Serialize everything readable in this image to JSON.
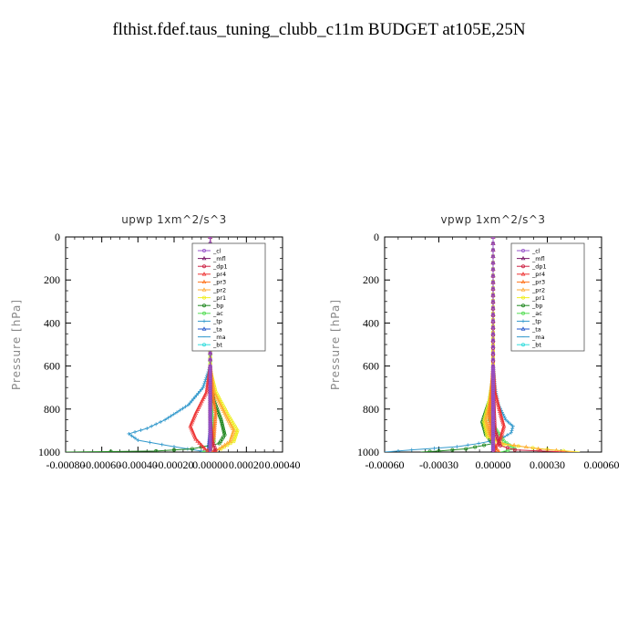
{
  "title": "flthist.fdef.taus_tuning_clubb_c11m  BUDGET at105E,25N",
  "chart_data": [
    {
      "type": "line",
      "title": "upwp   1xm^2/s^3",
      "ylabel": "Pressure [hPa]",
      "xlim": [
        -0.0008,
        0.0004
      ],
      "ylim": [
        1000,
        0
      ],
      "xticks": [
        "-0.00080",
        "-0.00060",
        "-0.00040",
        "-0.00020",
        "0.00000",
        "0.00020",
        "0.00040"
      ],
      "yticks": [
        "0",
        "200",
        "400",
        "600",
        "800",
        "1000"
      ],
      "legend_loc": "upper-right",
      "series": [
        {
          "name": "_cl",
          "color": "#9955cc",
          "marker": "circle",
          "points": [
            [
              0,
              0
            ],
            [
              0,
              600
            ],
            [
              0,
              900
            ],
            [
              0,
              980
            ],
            [
              0,
              1000
            ]
          ]
        },
        {
          "name": "_mfl",
          "color": "#7a1a6a",
          "marker": "tri",
          "points": [
            [
              0,
              0
            ],
            [
              0,
              600
            ],
            [
              0,
              900
            ],
            [
              0,
              1000
            ]
          ]
        },
        {
          "name": "_dp1",
          "color": "#cc2244",
          "marker": "circle",
          "points": [
            [
              0,
              0
            ],
            [
              0,
              600
            ],
            [
              0,
              850
            ],
            [
              1e-05,
              950
            ],
            [
              3e-05,
              990
            ],
            [
              2e-05,
              1000
            ]
          ]
        },
        {
          "name": "_pr4",
          "color": "#ee3333",
          "marker": "tri",
          "points": [
            [
              0,
              0
            ],
            [
              0,
              600
            ],
            [
              -2e-05,
              720
            ],
            [
              -8e-05,
              820
            ],
            [
              -0.00011,
              880
            ],
            [
              -8e-05,
              940
            ],
            [
              -3e-05,
              985
            ],
            [
              0,
              1000
            ]
          ]
        },
        {
          "name": "_pr3",
          "color": "#ff7722",
          "marker": "tri",
          "points": [
            [
              0,
              0
            ],
            [
              0,
              600
            ],
            [
              1e-05,
              720
            ],
            [
              3e-05,
              820
            ],
            [
              2e-05,
              930
            ],
            [
              0.0,
              990
            ],
            [
              4e-05,
              1000
            ]
          ]
        },
        {
          "name": "_pr2",
          "color": "#ffaa33",
          "marker": "tri",
          "points": [
            [
              0,
              0
            ],
            [
              0,
              600
            ],
            [
              2e-05,
              720
            ],
            [
              8e-05,
              820
            ],
            [
              0.00013,
              900
            ],
            [
              0.00011,
              950
            ],
            [
              5e-05,
              985
            ],
            [
              0,
              1000
            ]
          ]
        },
        {
          "name": "_pr1",
          "color": "#eeee22",
          "marker": "circle",
          "points": [
            [
              0,
              0
            ],
            [
              0,
              620
            ],
            [
              3e-05,
              720
            ],
            [
              0.0001,
              830
            ],
            [
              0.00015,
              900
            ],
            [
              0.00013,
              950
            ],
            [
              6e-05,
              985
            ],
            [
              0,
              1000
            ]
          ]
        },
        {
          "name": "_bp",
          "color": "#228822",
          "marker": "circle",
          "points": [
            [
              0,
              0
            ],
            [
              0,
              650
            ],
            [
              2e-05,
              760
            ],
            [
              6e-05,
              850
            ],
            [
              8e-05,
              920
            ],
            [
              5e-05,
              960
            ],
            [
              -0.0001,
              985
            ],
            [
              -0.0003,
              995
            ],
            [
              -0.0008,
              1000
            ]
          ]
        },
        {
          "name": "_ac",
          "color": "#55dd55",
          "marker": "circle",
          "points": [
            [
              0,
              0
            ],
            [
              0,
              700
            ],
            [
              1e-05,
              850
            ],
            [
              2e-05,
              950
            ],
            [
              -1e-05,
              995
            ],
            [
              -5e-05,
              1000
            ]
          ]
        },
        {
          "name": "_tp",
          "color": "#3399cc",
          "marker": "star",
          "points": [
            [
              0,
              0
            ],
            [
              0,
              600
            ],
            [
              -4e-05,
              700
            ],
            [
              -0.00012,
              780
            ],
            [
              -0.00025,
              850
            ],
            [
              -0.00035,
              890
            ],
            [
              -0.00045,
              915
            ],
            [
              -0.0004,
              945
            ],
            [
              -0.0002,
              975
            ],
            [
              -5e-05,
              995
            ],
            [
              0,
              1000
            ]
          ]
        },
        {
          "name": "_ta",
          "color": "#2255cc",
          "marker": "tri",
          "points": [
            [
              0,
              0
            ],
            [
              0,
              600
            ],
            [
              0,
              900
            ],
            [
              -1e-05,
              990
            ],
            [
              0,
              1000
            ]
          ]
        },
        {
          "name": "_ma",
          "color": "#3399cc",
          "marker": "dash",
          "points": [
            [
              0,
              0
            ],
            [
              0,
              900
            ],
            [
              0,
              1000
            ]
          ]
        },
        {
          "name": "_bt",
          "color": "#33dddd",
          "marker": "circle",
          "points": [
            [
              0,
              0
            ],
            [
              0,
              900
            ],
            [
              0,
              1000
            ]
          ]
        }
      ]
    },
    {
      "type": "line",
      "title": "vpwp   1xm^2/s^3",
      "ylabel": "Pressure [hPa]",
      "xlim": [
        -0.0006,
        0.0006
      ],
      "ylim": [
        1000,
        0
      ],
      "xticks": [
        "-0.00060",
        "-0.00030",
        "0.00000",
        "0.00030",
        "0.00060"
      ],
      "yticks": [
        "0",
        "200",
        "400",
        "600",
        "800",
        "1000"
      ],
      "legend_loc": "upper-right",
      "series": [
        {
          "name": "_cl",
          "color": "#9955cc",
          "marker": "circle",
          "points": [
            [
              0,
              0
            ],
            [
              0,
              600
            ],
            [
              0,
              900
            ],
            [
              0,
              1000
            ]
          ]
        },
        {
          "name": "_mfl",
          "color": "#7a1a6a",
          "marker": "tri",
          "points": [
            [
              0,
              0
            ],
            [
              0,
              600
            ],
            [
              0,
              900
            ],
            [
              0,
              1000
            ]
          ]
        },
        {
          "name": "_dp1",
          "color": "#cc2244",
          "marker": "circle",
          "points": [
            [
              0,
              0
            ],
            [
              0,
              700
            ],
            [
              1e-05,
              900
            ],
            [
              4e-05,
              970
            ],
            [
              0.00012,
              990
            ],
            [
              0.0004,
              1000
            ]
          ]
        },
        {
          "name": "_pr4",
          "color": "#ee3333",
          "marker": "tri",
          "points": [
            [
              0,
              0
            ],
            [
              0,
              600
            ],
            [
              1e-05,
              720
            ],
            [
              4e-05,
              820
            ],
            [
              6e-05,
              880
            ],
            [
              4e-05,
              940
            ],
            [
              1e-05,
              985
            ],
            [
              0,
              1000
            ]
          ]
        },
        {
          "name": "_pr3",
          "color": "#ff7722",
          "marker": "tri",
          "points": [
            [
              0,
              0
            ],
            [
              0,
              600
            ],
            [
              -1e-05,
              720
            ],
            [
              -2e-05,
              820
            ],
            [
              -1e-05,
              930
            ],
            [
              2e-05,
              990
            ],
            [
              4e-05,
              1000
            ]
          ]
        },
        {
          "name": "_pr2",
          "color": "#ffaa33",
          "marker": "tri",
          "points": [
            [
              0,
              0
            ],
            [
              0,
              650
            ],
            [
              -1e-05,
              750
            ],
            [
              -4e-05,
              850
            ],
            [
              -2e-05,
              920
            ],
            [
              5e-05,
              960
            ],
            [
              0.00025,
              985
            ],
            [
              0.00045,
              1000
            ]
          ]
        },
        {
          "name": "_pr1",
          "color": "#eeee22",
          "marker": "circle",
          "points": [
            [
              0,
              0
            ],
            [
              0,
              650
            ],
            [
              -2e-05,
              760
            ],
            [
              -5e-05,
              860
            ],
            [
              -3e-05,
              930
            ],
            [
              6e-05,
              965
            ],
            [
              0.0003,
              988
            ],
            [
              0.00048,
              1000
            ]
          ]
        },
        {
          "name": "_bp",
          "color": "#228822",
          "marker": "circle",
          "points": [
            [
              0,
              0
            ],
            [
              0,
              650
            ],
            [
              -2e-05,
              760
            ],
            [
              -6e-05,
              860
            ],
            [
              -4e-05,
              920
            ],
            [
              0.0,
              960
            ],
            [
              -0.00015,
              985
            ],
            [
              -0.0003,
              995
            ],
            [
              -0.0004,
              1000
            ]
          ]
        },
        {
          "name": "_ac",
          "color": "#55dd55",
          "marker": "circle",
          "points": [
            [
              0,
              0
            ],
            [
              0,
              700
            ],
            [
              -2e-05,
              850
            ],
            [
              6e-05,
              950
            ],
            [
              0.00012,
              985
            ],
            [
              4e-05,
              1000
            ]
          ]
        },
        {
          "name": "_tp",
          "color": "#3399cc",
          "marker": "star",
          "points": [
            [
              0,
              0
            ],
            [
              0,
              600
            ],
            [
              1e-05,
              700
            ],
            [
              3e-05,
              780
            ],
            [
              7e-05,
              850
            ],
            [
              0.00011,
              880
            ],
            [
              0.0001,
              910
            ],
            [
              4e-05,
              940
            ],
            [
              -8e-05,
              960
            ],
            [
              -0.0002,
              975
            ],
            [
              -0.00045,
              990
            ],
            [
              -0.0006,
              1000
            ]
          ]
        },
        {
          "name": "_ta",
          "color": "#2255cc",
          "marker": "tri",
          "points": [
            [
              0,
              0
            ],
            [
              0,
              900
            ],
            [
              0,
              1000
            ]
          ]
        },
        {
          "name": "_ma",
          "color": "#3399cc",
          "marker": "dash",
          "points": [
            [
              0,
              0
            ],
            [
              0,
              900
            ],
            [
              0,
              1000
            ]
          ]
        },
        {
          "name": "_bt",
          "color": "#33dddd",
          "marker": "circle",
          "points": [
            [
              0,
              0
            ],
            [
              0,
              900
            ],
            [
              0,
              1000
            ]
          ]
        }
      ]
    }
  ]
}
